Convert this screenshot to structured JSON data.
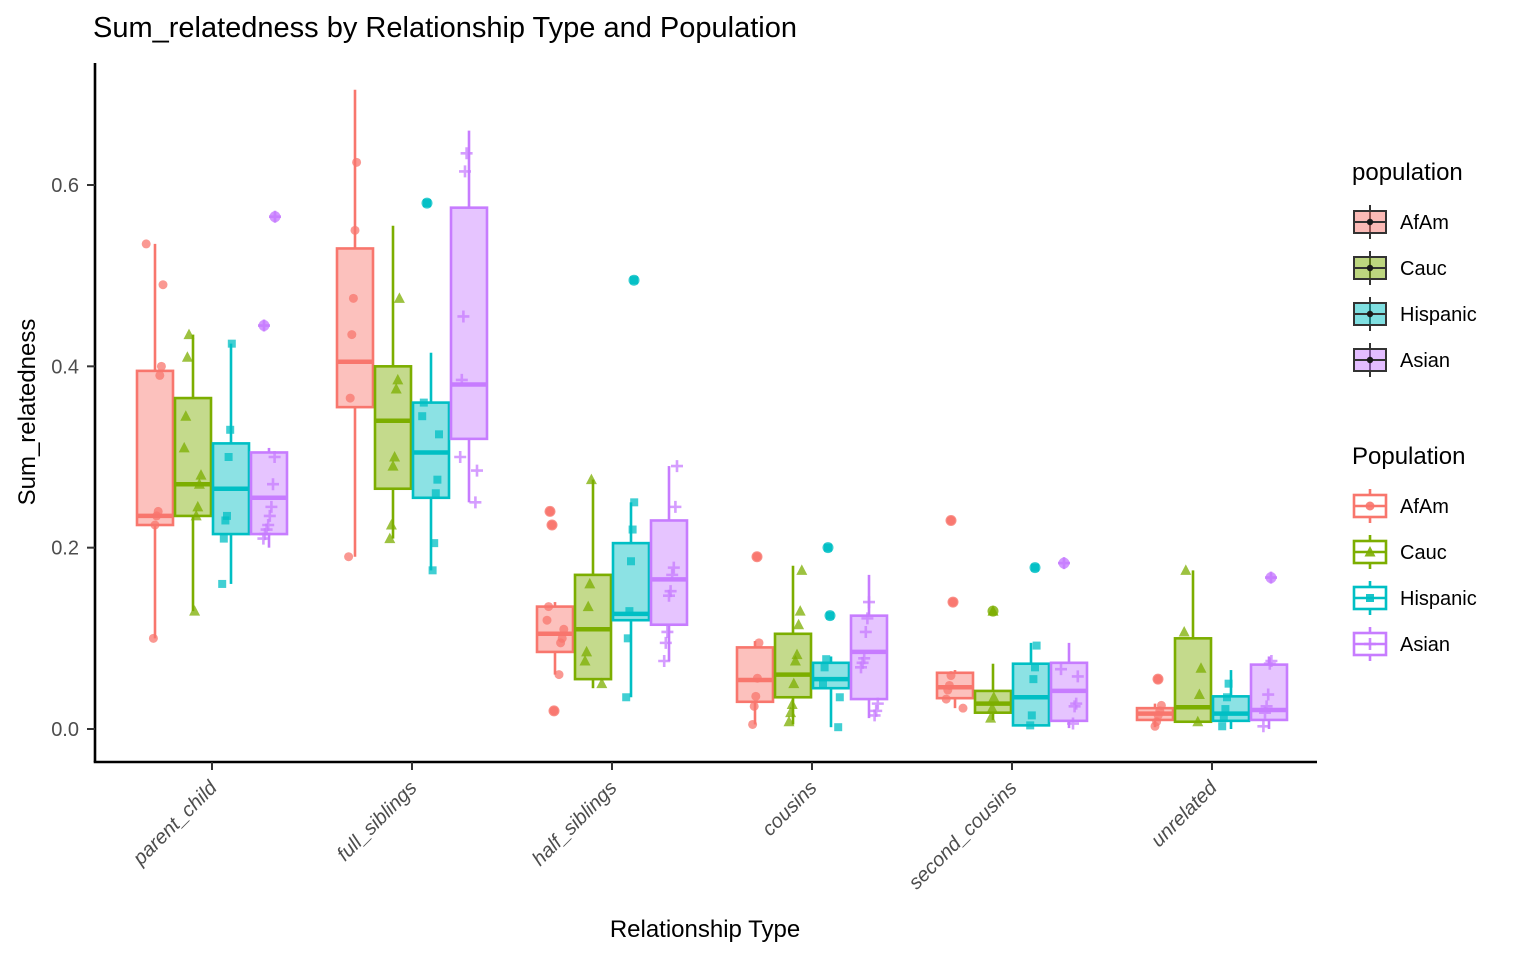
{
  "chart_data": {
    "type": "boxplot",
    "title": "Sum_relatedness by Relationship Type and Population",
    "xlabel": "Relationship Type",
    "ylabel": "Sum_relatedness",
    "categories": [
      "parent_child",
      "full_siblings",
      "half_siblings",
      "cousins",
      "second_cousins",
      "unrelated"
    ],
    "yticks": [
      0.0,
      0.2,
      0.4,
      0.6
    ],
    "ylim": [
      -0.02,
      0.72
    ],
    "grid": false,
    "legend_position": "right",
    "legends": [
      {
        "title": "population",
        "style": "fill",
        "items": [
          "AfAm",
          "Cauc",
          "Hispanic",
          "Asian"
        ]
      },
      {
        "title": "Population",
        "style": "outline",
        "items": [
          "AfAm",
          "Cauc",
          "Hispanic",
          "Asian"
        ]
      }
    ],
    "series": [
      {
        "name": "AfAm",
        "color": "#F8766D",
        "shape": "circle",
        "boxes": [
          {
            "lo": 0.1,
            "q1": 0.225,
            "me": 0.235,
            "q3": 0.395,
            "hi": 0.535,
            "out": [],
            "pts": [
              0.535,
              0.49,
              0.4,
              0.39,
              0.24,
              0.235,
              0.225,
              0.1
            ]
          },
          {
            "lo": 0.19,
            "q1": 0.355,
            "me": 0.405,
            "q3": 0.53,
            "hi": 0.705,
            "out": [],
            "pts": [
              0.625,
              0.55,
              0.475,
              0.435,
              0.365,
              0.19
            ]
          },
          {
            "lo": 0.06,
            "q1": 0.085,
            "me": 0.105,
            "q3": 0.135,
            "hi": 0.14,
            "out": [
              0.24,
              0.225,
              0.02
            ],
            "pts": [
              0.135,
              0.12,
              0.11,
              0.1,
              0.095,
              0.06
            ]
          },
          {
            "lo": 0.005,
            "q1": 0.03,
            "me": 0.054,
            "q3": 0.09,
            "hi": 0.097,
            "out": [
              0.19
            ],
            "pts": [
              0.095,
              0.056,
              0.036,
              0.025,
              0.005
            ]
          },
          {
            "lo": 0.023,
            "q1": 0.034,
            "me": 0.046,
            "q3": 0.062,
            "hi": 0.065,
            "out": [
              0.23,
              0.14
            ],
            "pts": [
              0.059,
              0.048,
              0.043,
              0.033,
              0.023
            ]
          },
          {
            "lo": 0.002,
            "q1": 0.01,
            "me": 0.017,
            "q3": 0.023,
            "hi": 0.028,
            "out": [
              0.055
            ],
            "pts": [
              0.026,
              0.02,
              0.015,
              0.008,
              0.003
            ]
          }
        ]
      },
      {
        "name": "Cauc",
        "color": "#7CAE00",
        "shape": "triangle",
        "boxes": [
          {
            "lo": 0.13,
            "q1": 0.235,
            "me": 0.27,
            "q3": 0.365,
            "hi": 0.435,
            "out": [],
            "pts": [
              0.435,
              0.41,
              0.345,
              0.31,
              0.28,
              0.27,
              0.245,
              0.235,
              0.13
            ]
          },
          {
            "lo": 0.21,
            "q1": 0.265,
            "me": 0.34,
            "q3": 0.4,
            "hi": 0.555,
            "out": [],
            "pts": [
              0.475,
              0.385,
              0.375,
              0.3,
              0.29,
              0.225,
              0.21
            ]
          },
          {
            "lo": 0.045,
            "q1": 0.055,
            "me": 0.11,
            "q3": 0.17,
            "hi": 0.275,
            "out": [],
            "pts": [
              0.275,
              0.16,
              0.135,
              0.085,
              0.075,
              0.05
            ]
          },
          {
            "lo": 0.005,
            "q1": 0.035,
            "me": 0.06,
            "q3": 0.105,
            "hi": 0.18,
            "out": [],
            "pts": [
              0.175,
              0.13,
              0.115,
              0.082,
              0.075,
              0.05,
              0.027,
              0.018,
              0.008
            ]
          },
          {
            "lo": 0.01,
            "q1": 0.018,
            "me": 0.028,
            "q3": 0.042,
            "hi": 0.072,
            "out": [
              0.13
            ],
            "pts": [
              0.035,
              0.023,
              0.012
            ]
          },
          {
            "lo": 0.008,
            "q1": 0.008,
            "me": 0.024,
            "q3": 0.1,
            "hi": 0.175,
            "out": [],
            "pts": [
              0.175,
              0.107,
              0.067,
              0.038,
              0.008
            ]
          }
        ]
      },
      {
        "name": "Hispanic",
        "color": "#00BFC4",
        "shape": "square",
        "boxes": [
          {
            "lo": 0.16,
            "q1": 0.215,
            "me": 0.265,
            "q3": 0.315,
            "hi": 0.425,
            "out": [],
            "pts": [
              0.425,
              0.33,
              0.3,
              0.235,
              0.23,
              0.21,
              0.16
            ]
          },
          {
            "lo": 0.175,
            "q1": 0.255,
            "me": 0.305,
            "q3": 0.36,
            "hi": 0.415,
            "out": [
              0.58
            ],
            "pts": [
              0.36,
              0.345,
              0.325,
              0.275,
              0.26,
              0.205,
              0.175
            ]
          },
          {
            "lo": 0.035,
            "q1": 0.12,
            "me": 0.127,
            "q3": 0.205,
            "hi": 0.25,
            "out": [
              0.495
            ],
            "pts": [
              0.25,
              0.22,
              0.185,
              0.13,
              0.1,
              0.035
            ]
          },
          {
            "lo": 0.002,
            "q1": 0.045,
            "me": 0.055,
            "q3": 0.073,
            "hi": 0.08,
            "out": [
              0.2,
              0.125
            ],
            "pts": [
              0.077,
              0.068,
              0.05,
              0.035,
              0.002
            ]
          },
          {
            "lo": 0.004,
            "q1": 0.004,
            "me": 0.035,
            "q3": 0.072,
            "hi": 0.095,
            "out": [
              0.178
            ],
            "pts": [
              0.092,
              0.068,
              0.055,
              0.015,
              0.004
            ]
          },
          {
            "lo": 0.0,
            "q1": 0.009,
            "me": 0.017,
            "q3": 0.036,
            "hi": 0.065,
            "out": [],
            "pts": [
              0.05,
              0.035,
              0.022,
              0.012,
              0.003
            ]
          }
        ]
      },
      {
        "name": "Asian",
        "color": "#C77CFF",
        "shape": "plus",
        "boxes": [
          {
            "lo": 0.2,
            "q1": 0.215,
            "me": 0.255,
            "q3": 0.305,
            "hi": 0.31,
            "out": [
              0.565,
              0.445
            ],
            "pts": [
              0.3,
              0.27,
              0.245,
              0.235,
              0.225,
              0.22,
              0.215,
              0.21
            ]
          },
          {
            "lo": 0.25,
            "q1": 0.32,
            "me": 0.38,
            "q3": 0.575,
            "hi": 0.66,
            "out": [],
            "pts": [
              0.635,
              0.615,
              0.455,
              0.385,
              0.3,
              0.285,
              0.25
            ]
          },
          {
            "lo": 0.075,
            "q1": 0.115,
            "me": 0.165,
            "q3": 0.23,
            "hi": 0.29,
            "out": [],
            "pts": [
              0.29,
              0.245,
              0.178,
              0.17,
              0.152,
              0.147,
              0.107,
              0.095,
              0.075
            ]
          },
          {
            "lo": 0.012,
            "q1": 0.033,
            "me": 0.085,
            "q3": 0.125,
            "hi": 0.17,
            "out": [],
            "pts": [
              0.14,
              0.122,
              0.107,
              0.078,
              0.073,
              0.068,
              0.028,
              0.02,
              0.015
            ]
          },
          {
            "lo": 0.001,
            "q1": 0.009,
            "me": 0.042,
            "q3": 0.073,
            "hi": 0.095,
            "out": [
              0.183
            ],
            "pts": [
              0.066,
              0.058,
              0.028,
              0.025,
              0.006
            ]
          },
          {
            "lo": 0.0,
            "q1": 0.01,
            "me": 0.021,
            "q3": 0.071,
            "hi": 0.08,
            "out": [
              0.167
            ],
            "pts": [
              0.075,
              0.072,
              0.038,
              0.025,
              0.018,
              0.003
            ]
          }
        ]
      }
    ]
  }
}
